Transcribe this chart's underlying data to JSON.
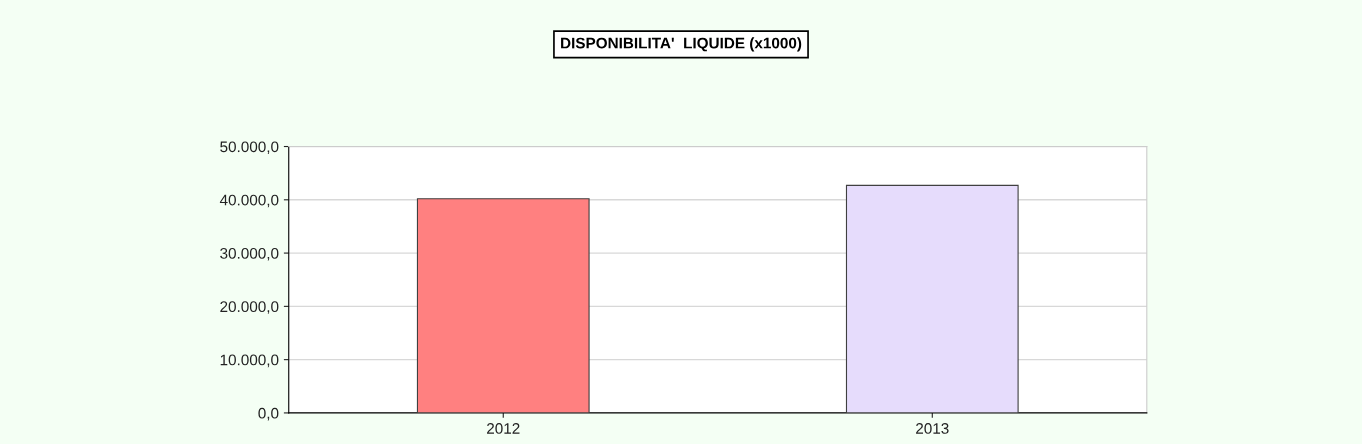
{
  "chart_data": {
    "type": "bar",
    "title": "DISPONIBILITA'  LIQUIDE (x1000)",
    "categories": [
      "2012",
      "2013"
    ],
    "values": [
      40200,
      42700
    ],
    "colors": [
      "#ff8080",
      "#e6dcfc"
    ],
    "ylim": [
      0,
      50000
    ],
    "yticks": [
      {
        "value": 0,
        "label": "0,0"
      },
      {
        "value": 10000,
        "label": "10.000,0"
      },
      {
        "value": 20000,
        "label": "20.000,0"
      },
      {
        "value": 30000,
        "label": "30.000,0"
      },
      {
        "value": 40000,
        "label": "40.000,0"
      },
      {
        "value": 50000,
        "label": "50.000,0"
      }
    ],
    "grid": "y"
  }
}
